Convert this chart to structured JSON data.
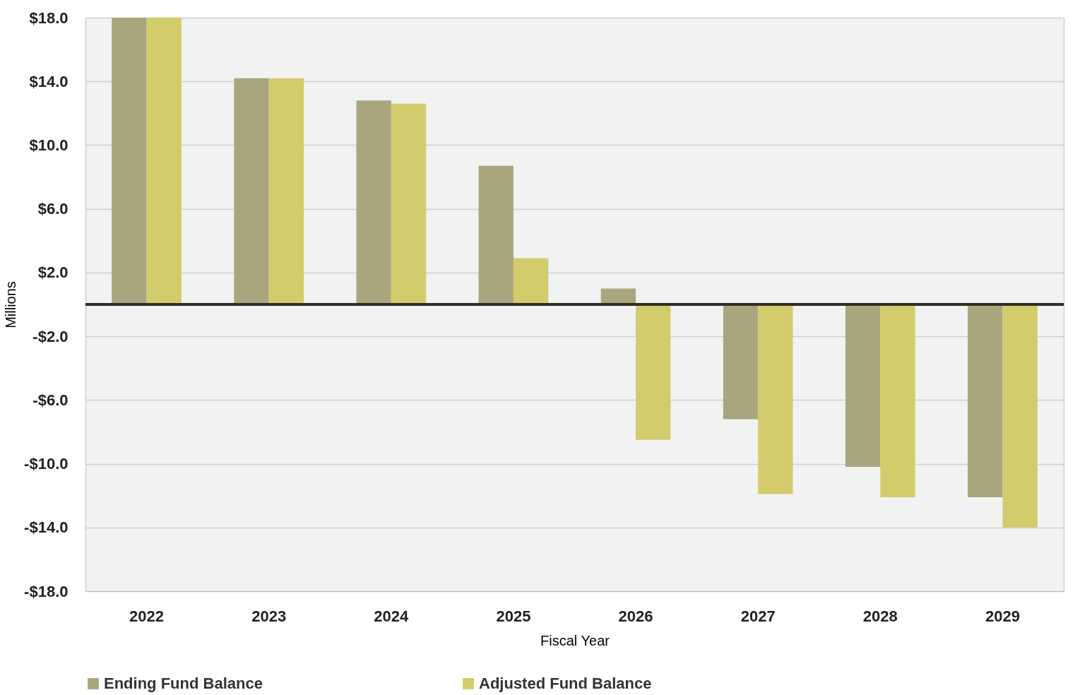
{
  "chart_data": {
    "type": "bar",
    "xlabel": "Fiscal Year",
    "ylabel": "Millions",
    "categories": [
      "2022",
      "2023",
      "2024",
      "2025",
      "2026",
      "2027",
      "2028",
      "2029"
    ],
    "series": [
      {
        "name": "Ending Fund Balance",
        "color": "#a9a67d",
        "values": [
          18.0,
          14.2,
          12.8,
          8.7,
          1.0,
          -7.2,
          -10.2,
          -12.1
        ]
      },
      {
        "name": "Adjusted Fund Balance",
        "color": "#d3cc6c",
        "values": [
          18.0,
          14.2,
          12.6,
          2.9,
          -8.5,
          -11.9,
          -12.1,
          -14.0
        ]
      }
    ],
    "ylim": [
      -18,
      18
    ],
    "yticks": [
      {
        "value": 18,
        "label": "$18.0"
      },
      {
        "value": 14,
        "label": "$14.0"
      },
      {
        "value": 10,
        "label": "$10.0"
      },
      {
        "value": 6,
        "label": "$6.0"
      },
      {
        "value": 2,
        "label": "$2.0"
      },
      {
        "value": -2,
        "label": "-$2.0"
      },
      {
        "value": -6,
        "label": "-$6.0"
      },
      {
        "value": -10,
        "label": "-$10.0"
      },
      {
        "value": -14,
        "label": "-$14.0"
      },
      {
        "value": -18,
        "label": "-$18.0"
      }
    ],
    "ref_lines": [
      {
        "axis": "y",
        "value": 0,
        "color": "#302d22"
      }
    ],
    "grid": "y",
    "legend": "bottom"
  }
}
